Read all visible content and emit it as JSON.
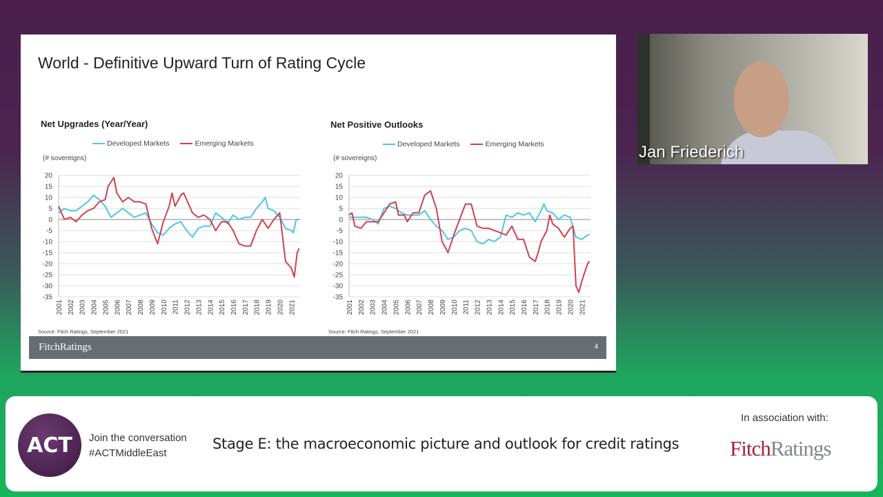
{
  "slide": {
    "title": "World - Definitive Upward Turn of Rating Cycle",
    "footer_logo": "FitchRatings",
    "page_number": "4"
  },
  "colors": {
    "developed": "#4cc6e6",
    "emerging": "#d0404f",
    "footer": "#676d73",
    "fitch_red": "#a8203c",
    "fitch_gray": "#7f868c"
  },
  "webcam": {
    "name": "Jan Friederich"
  },
  "banner": {
    "logo": "ACT",
    "join_line1": "Join the conversation",
    "join_line2": "#ACTMiddleEast",
    "stage_title": "Stage E: the macroeconomic  picture and outlook for credit ratings",
    "assoc": "In association with:",
    "partner_logo_part1": "Fitch",
    "partner_logo_part2": "Ratings"
  },
  "chart_data": [
    {
      "type": "line",
      "title": "Net Upgrades (Year/Year)",
      "ylabel": "(# sovereigns)",
      "source": "Source: Fitch Ratings, September 2021",
      "legend_position": "top",
      "ylim": [
        -35,
        20
      ],
      "yticks": [
        20,
        15,
        10,
        5,
        0,
        -5,
        -10,
        -15,
        -20,
        -25,
        -30,
        -35
      ],
      "xticks": [
        "2001",
        "2002",
        "2003",
        "2004",
        "2005",
        "2006",
        "2007",
        "2008",
        "2009",
        "2010",
        "2011",
        "2012",
        "2013",
        "2014",
        "2015",
        "2016",
        "2017",
        "2018",
        "2019",
        "2020",
        "2021"
      ],
      "grid": true,
      "series": [
        {
          "name": "Developed Markets",
          "color": "#4cc6e6",
          "points": [
            [
              "2001-01",
              3
            ],
            [
              "2001-07",
              5
            ],
            [
              "2002-01",
              4
            ],
            [
              "2002-07",
              4
            ],
            [
              "2003-01",
              6
            ],
            [
              "2003-07",
              8
            ],
            [
              "2004-01",
              11
            ],
            [
              "2004-07",
              9
            ],
            [
              "2005-01",
              6
            ],
            [
              "2005-07",
              1
            ],
            [
              "2006-01",
              3
            ],
            [
              "2006-07",
              5
            ],
            [
              "2007-01",
              3
            ],
            [
              "2007-07",
              1
            ],
            [
              "2008-01",
              2
            ],
            [
              "2008-07",
              3
            ],
            [
              "2009-01",
              -2
            ],
            [
              "2009-07",
              -6
            ],
            [
              "2010-01",
              -7
            ],
            [
              "2010-07",
              -4
            ],
            [
              "2011-01",
              -2
            ],
            [
              "2011-07",
              -1
            ],
            [
              "2012-01",
              -5
            ],
            [
              "2012-07",
              -8
            ],
            [
              "2013-01",
              -4
            ],
            [
              "2013-07",
              -3
            ],
            [
              "2014-01",
              -3
            ],
            [
              "2014-07",
              3
            ],
            [
              "2015-01",
              1
            ],
            [
              "2015-07",
              -2
            ],
            [
              "2016-01",
              2
            ],
            [
              "2016-07",
              0
            ],
            [
              "2017-01",
              1
            ],
            [
              "2017-07",
              1
            ],
            [
              "2018-01",
              5
            ],
            [
              "2018-07",
              8
            ],
            [
              "2018-10",
              10
            ],
            [
              "2019-01",
              5
            ],
            [
              "2019-07",
              4
            ],
            [
              "2020-01",
              1
            ],
            [
              "2020-07",
              -4
            ],
            [
              "2021-01",
              -5
            ],
            [
              "2021-03",
              -6
            ],
            [
              "2021-06",
              0
            ],
            [
              "2021-09",
              0
            ]
          ]
        },
        {
          "name": "Emerging Markets",
          "color": "#d0404f",
          "points": [
            [
              "2001-01",
              6
            ],
            [
              "2001-07",
              0
            ],
            [
              "2002-01",
              1
            ],
            [
              "2002-07",
              -1
            ],
            [
              "2003-01",
              2
            ],
            [
              "2003-07",
              4
            ],
            [
              "2004-01",
              5
            ],
            [
              "2004-07",
              8
            ],
            [
              "2005-01",
              9
            ],
            [
              "2005-04",
              15
            ],
            [
              "2005-10",
              19
            ],
            [
              "2006-01",
              12
            ],
            [
              "2006-07",
              8
            ],
            [
              "2007-01",
              10
            ],
            [
              "2007-07",
              8
            ],
            [
              "2008-01",
              8
            ],
            [
              "2008-07",
              7
            ],
            [
              "2009-01",
              -4
            ],
            [
              "2009-07",
              -11
            ],
            [
              "2010-01",
              -1
            ],
            [
              "2010-07",
              6
            ],
            [
              "2010-10",
              12
            ],
            [
              "2011-01",
              6
            ],
            [
              "2011-07",
              11
            ],
            [
              "2011-10",
              12
            ],
            [
              "2012-07",
              3
            ],
            [
              "2013-01",
              1
            ],
            [
              "2013-07",
              2
            ],
            [
              "2014-01",
              0
            ],
            [
              "2014-07",
              -5
            ],
            [
              "2015-01",
              -1
            ],
            [
              "2015-07",
              -1
            ],
            [
              "2016-01",
              -5
            ],
            [
              "2016-07",
              -11
            ],
            [
              "2017-01",
              -12
            ],
            [
              "2017-07",
              -12
            ],
            [
              "2018-01",
              -5
            ],
            [
              "2018-07",
              0
            ],
            [
              "2019-01",
              -4
            ],
            [
              "2019-07",
              0
            ],
            [
              "2020-01",
              3
            ],
            [
              "2020-07",
              -19
            ],
            [
              "2021-01",
              -22
            ],
            [
              "2021-04",
              -26
            ],
            [
              "2021-07",
              -15
            ],
            [
              "2021-09",
              -13
            ]
          ]
        }
      ]
    },
    {
      "type": "line",
      "title": "Net Positive Outlooks",
      "ylabel": "(# sovereigns)",
      "source": "Source: Fitch Ratings, September 2021",
      "legend_position": "top",
      "ylim": [
        -35,
        20
      ],
      "yticks": [
        20,
        15,
        10,
        5,
        0,
        -5,
        -10,
        -15,
        -20,
        -25,
        -30,
        -35
      ],
      "xticks": [
        "2001",
        "2002",
        "2003",
        "2004",
        "2005",
        "2006",
        "2007",
        "2008",
        "2009",
        "2010",
        "2011",
        "2012",
        "2013",
        "2014",
        "2015",
        "2016",
        "2017",
        "2018",
        "2019",
        "2020",
        "2021"
      ],
      "grid": true,
      "series": [
        {
          "name": "Developed Markets",
          "color": "#4cc6e6",
          "points": [
            [
              "2001-01",
              1
            ],
            [
              "2001-07",
              1
            ],
            [
              "2002-01",
              1
            ],
            [
              "2002-07",
              1
            ],
            [
              "2003-01",
              0
            ],
            [
              "2003-07",
              -2
            ],
            [
              "2004-01",
              5
            ],
            [
              "2004-07",
              6
            ],
            [
              "2005-01",
              5
            ],
            [
              "2005-07",
              3
            ],
            [
              "2006-01",
              2
            ],
            [
              "2006-07",
              2
            ],
            [
              "2007-01",
              2
            ],
            [
              "2007-07",
              4
            ],
            [
              "2008-01",
              0
            ],
            [
              "2008-07",
              -3
            ],
            [
              "2009-01",
              -5
            ],
            [
              "2009-07",
              -9
            ],
            [
              "2010-01",
              -8
            ],
            [
              "2010-07",
              -5
            ],
            [
              "2011-01",
              -4
            ],
            [
              "2011-07",
              -5
            ],
            [
              "2012-01",
              -10
            ],
            [
              "2012-07",
              -11
            ],
            [
              "2013-01",
              -9
            ],
            [
              "2013-07",
              -10
            ],
            [
              "2014-01",
              -8
            ],
            [
              "2014-07",
              2
            ],
            [
              "2015-01",
              1
            ],
            [
              "2015-07",
              3
            ],
            [
              "2016-01",
              2
            ],
            [
              "2016-07",
              3
            ],
            [
              "2017-01",
              -1
            ],
            [
              "2017-07",
              4
            ],
            [
              "2017-10",
              7
            ],
            [
              "2018-01",
              4
            ],
            [
              "2018-07",
              3
            ],
            [
              "2019-01",
              0
            ],
            [
              "2019-07",
              2
            ],
            [
              "2020-01",
              1
            ],
            [
              "2020-07",
              -8
            ],
            [
              "2021-01",
              -9
            ],
            [
              "2021-07",
              -7
            ],
            [
              "2021-09",
              -7
            ]
          ]
        },
        {
          "name": "Emerging Markets",
          "color": "#d0404f",
          "points": [
            [
              "2001-01",
              2
            ],
            [
              "2001-04",
              3
            ],
            [
              "2001-07",
              -3
            ],
            [
              "2002-01",
              -4
            ],
            [
              "2002-07",
              -1
            ],
            [
              "2003-01",
              -1
            ],
            [
              "2003-07",
              -1
            ],
            [
              "2004-01",
              3
            ],
            [
              "2004-07",
              7
            ],
            [
              "2005-01",
              8
            ],
            [
              "2005-04",
              2
            ],
            [
              "2005-10",
              2
            ],
            [
              "2006-01",
              -1
            ],
            [
              "2006-07",
              3
            ],
            [
              "2007-01",
              3
            ],
            [
              "2007-07",
              11
            ],
            [
              "2008-01",
              13
            ],
            [
              "2008-07",
              5
            ],
            [
              "2009-01",
              -10
            ],
            [
              "2009-07",
              -15
            ],
            [
              "2010-01",
              -7
            ],
            [
              "2010-07",
              0
            ],
            [
              "2011-01",
              7
            ],
            [
              "2011-07",
              7
            ],
            [
              "2012-01",
              -3
            ],
            [
              "2012-07",
              -4
            ],
            [
              "2013-01",
              -4
            ],
            [
              "2013-07",
              -5
            ],
            [
              "2014-01",
              -6
            ],
            [
              "2014-07",
              -7
            ],
            [
              "2015-01",
              -3
            ],
            [
              "2015-07",
              -9
            ],
            [
              "2016-01",
              -9
            ],
            [
              "2016-07",
              -17
            ],
            [
              "2017-01",
              -19
            ],
            [
              "2017-04",
              -15
            ],
            [
              "2017-07",
              -10
            ],
            [
              "2018-01",
              -5
            ],
            [
              "2018-04",
              2
            ],
            [
              "2018-07",
              -2
            ],
            [
              "2019-01",
              -4
            ],
            [
              "2019-07",
              -8
            ],
            [
              "2020-01",
              -4
            ],
            [
              "2020-04",
              -3
            ],
            [
              "2020-07",
              -30
            ],
            [
              "2020-10",
              -33
            ],
            [
              "2021-01",
              -28
            ],
            [
              "2021-07",
              -20
            ],
            [
              "2021-09",
              -19
            ]
          ]
        }
      ]
    }
  ]
}
